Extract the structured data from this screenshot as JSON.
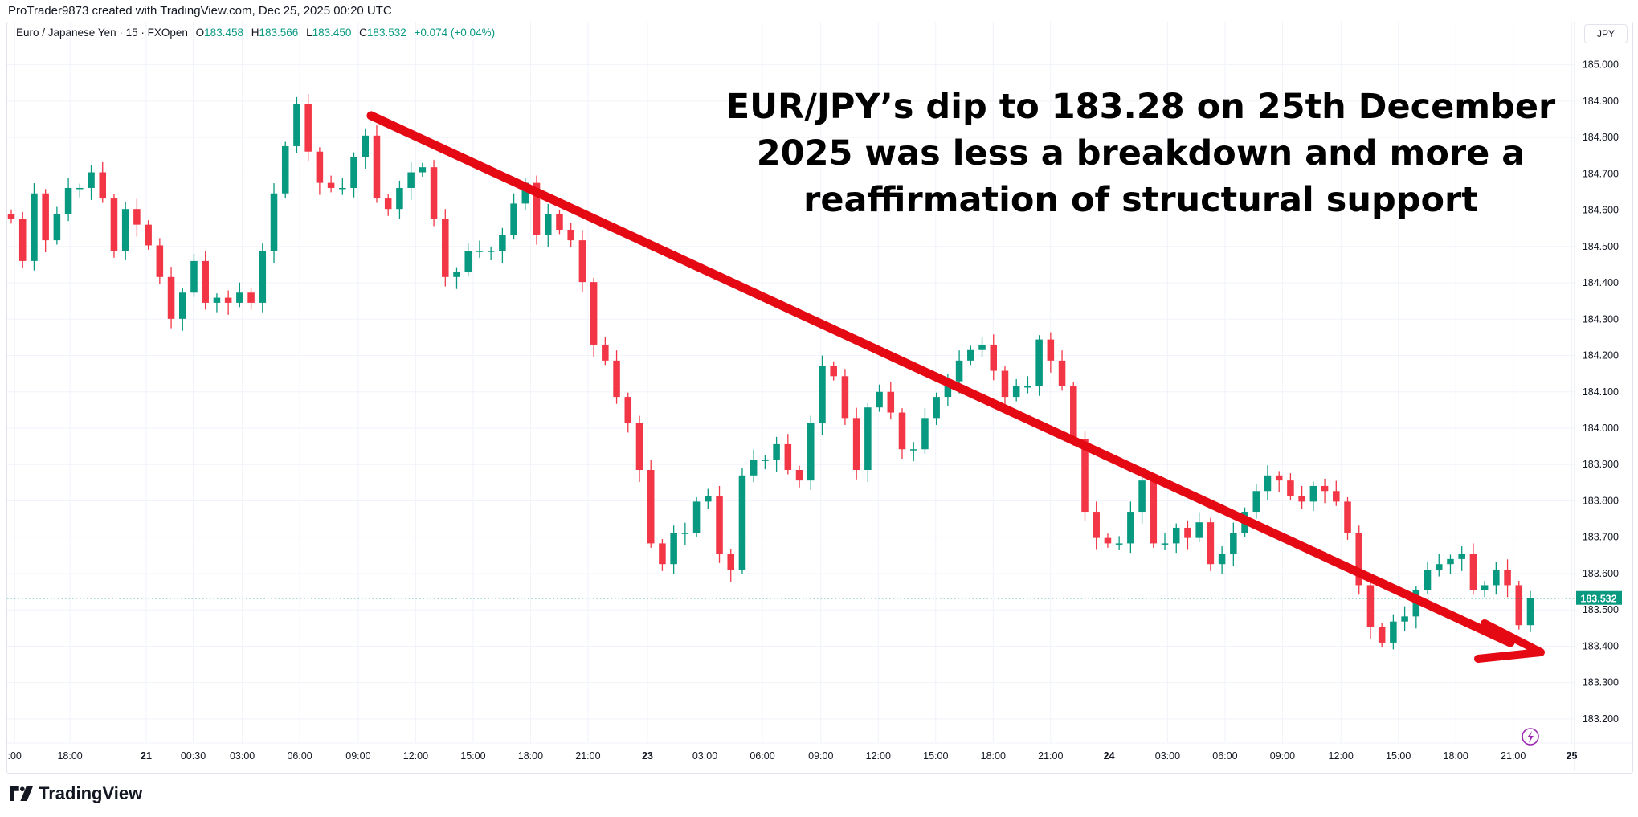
{
  "credit": "ProTrader9873 created with TradingView.com, Dec 25, 2025 00:20 UTC",
  "legend": {
    "symbol": "Euro / Japanese Yen · 15 · FXOpen",
    "o_label": "O",
    "o": "183.458",
    "h_label": "H",
    "h": "183.566",
    "l_label": "L",
    "l": "183.450",
    "c_label": "C",
    "c": "183.532",
    "change": "+0.074 (+0.04%)"
  },
  "currency_button": "JPY",
  "headline": "EUR/JPY’s dip to 183.28 on 25th December 2025 was less a breakdown and more a reaffirmation of structural support",
  "logo_text": "TradingView",
  "colors": {
    "up": "#089981",
    "down": "#f23645",
    "trendline": "#e50914",
    "grid": "#f0f3fa",
    "alert": "#9c27b0"
  },
  "icons": {
    "alert": "lightning-icon",
    "logo": "tradingview-logo-icon"
  },
  "chart_data": {
    "type": "candlestick",
    "interval": "15",
    "ylim": [
      183.15,
      185.04
    ],
    "y_ticks": [
      "185.000",
      "184.900",
      "184.800",
      "184.700",
      "184.600",
      "184.500",
      "184.400",
      "184.300",
      "184.200",
      "184.100",
      "184.000",
      "183.900",
      "183.800",
      "183.700",
      "183.600",
      "183.500",
      "183.400",
      "183.300",
      "183.200"
    ],
    "x_ticks": [
      ":00",
      "18:00",
      "21",
      "00:30",
      "03:00",
      "06:00",
      "09:00",
      "12:00",
      "15:00",
      "18:00",
      "21:00",
      "23",
      "03:00",
      "06:00",
      "09:00",
      "12:00",
      "15:00",
      "18:00",
      "21:00",
      "24",
      "03:00",
      "06:00",
      "09:00",
      "12:00",
      "15:00",
      "18:00",
      "21:00",
      "25"
    ],
    "last_price": "183.532",
    "close": [
      184.575,
      184.46,
      184.646,
      184.517,
      184.589,
      184.661,
      184.661,
      184.704,
      184.632,
      184.488,
      184.603,
      184.56,
      184.503,
      184.416,
      184.301,
      184.373,
      184.46,
      184.345,
      184.359,
      184.345,
      184.373,
      184.345,
      184.488,
      184.646,
      184.776,
      184.891,
      184.761,
      184.675,
      184.661,
      184.661,
      184.747,
      184.805,
      184.632,
      184.603,
      184.661,
      184.704,
      184.718,
      184.575,
      184.416,
      184.431,
      184.488,
      184.488,
      184.488,
      184.531,
      184.618,
      184.675,
      184.531,
      184.589,
      184.546,
      184.517,
      184.402,
      184.23,
      184.186,
      184.086,
      184.014,
      183.885,
      183.683,
      183.626,
      183.712,
      183.712,
      183.798,
      183.813,
      183.655,
      183.611,
      183.87,
      183.913,
      183.913,
      183.956,
      183.885,
      183.856,
      184.014,
      184.172,
      184.143,
      184.028,
      183.885,
      184.057,
      184.1,
      184.043,
      183.942,
      183.942,
      184.028,
      184.086,
      184.129,
      184.186,
      184.215,
      184.23,
      184.158,
      184.086,
      184.115,
      184.115,
      184.244,
      184.186,
      184.115,
      183.971,
      183.77,
      183.698,
      183.683,
      183.683,
      183.77,
      183.856,
      183.683,
      183.683,
      183.726,
      183.698,
      183.741,
      183.626,
      183.655,
      183.712,
      183.77,
      183.827,
      183.87,
      183.856,
      183.813,
      183.798,
      183.841,
      183.827,
      183.798,
      183.712,
      183.568,
      183.453,
      183.41,
      183.468,
      183.482,
      183.554,
      183.611,
      183.626,
      183.64,
      183.655,
      183.554,
      183.568,
      183.611,
      183.568,
      183.458,
      183.532
    ],
    "open_first": 184.59,
    "trendline": {
      "from": 184.86,
      "to": 183.39,
      "direction": "down",
      "arrow": true
    }
  }
}
